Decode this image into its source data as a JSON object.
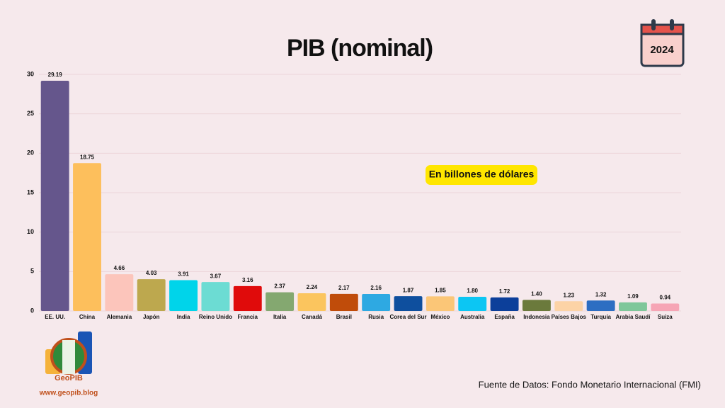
{
  "chart_data": {
    "type": "bar",
    "title": "PIB (nominal)",
    "year": "2024",
    "annotation": "En billones de dólares",
    "source": "Fuente de Datos: Fondo Monetario Internacional (FMI)",
    "logo": {
      "name": "GeoPIB",
      "url": "www.geopib.blog"
    },
    "categories": [
      "EE. UU.",
      "China",
      "Alemania",
      "Japón",
      "India",
      "Reino Unido",
      "Francia",
      "Italia",
      "Canadá",
      "Brasil",
      "Rusia",
      "Corea del Sur",
      "México",
      "Australia",
      "España",
      "Indonesia",
      "Países Bajos",
      "Turquía",
      "Arabia Saudí",
      "Suiza"
    ],
    "values": [
      29.19,
      18.75,
      4.66,
      4.03,
      3.91,
      3.67,
      3.16,
      2.37,
      2.24,
      2.17,
      2.16,
      1.87,
      1.85,
      1.8,
      1.72,
      1.4,
      1.23,
      1.32,
      1.09,
      0.94
    ],
    "value_labels": [
      "29.19",
      "18.75",
      "4.66",
      "4.03",
      "3.91",
      "3.67",
      "3.16",
      "2.37",
      "2.24",
      "2.17",
      "2.16",
      "1.87",
      "1.85",
      "1.80",
      "1.72",
      "1.40",
      "1.23",
      "1.32",
      "1.09",
      "0.94"
    ],
    "colors": [
      "#65568c",
      "#fdbf5c",
      "#fcc5bb",
      "#bda84e",
      "#00d4ea",
      "#6cdcd3",
      "#e00b0b",
      "#84a870",
      "#fbc55e",
      "#c04c0a",
      "#2ea9e2",
      "#0e4f9e",
      "#fbc677",
      "#0cc6f3",
      "#0c3f9a",
      "#6b7a3c",
      "#fcd3a6",
      "#2d6ec2",
      "#7fc79a",
      "#f6a5b5"
    ],
    "ylim": [
      0,
      30
    ],
    "yticks": [
      0,
      5,
      10,
      15,
      20,
      25,
      30
    ],
    "grid": true
  }
}
